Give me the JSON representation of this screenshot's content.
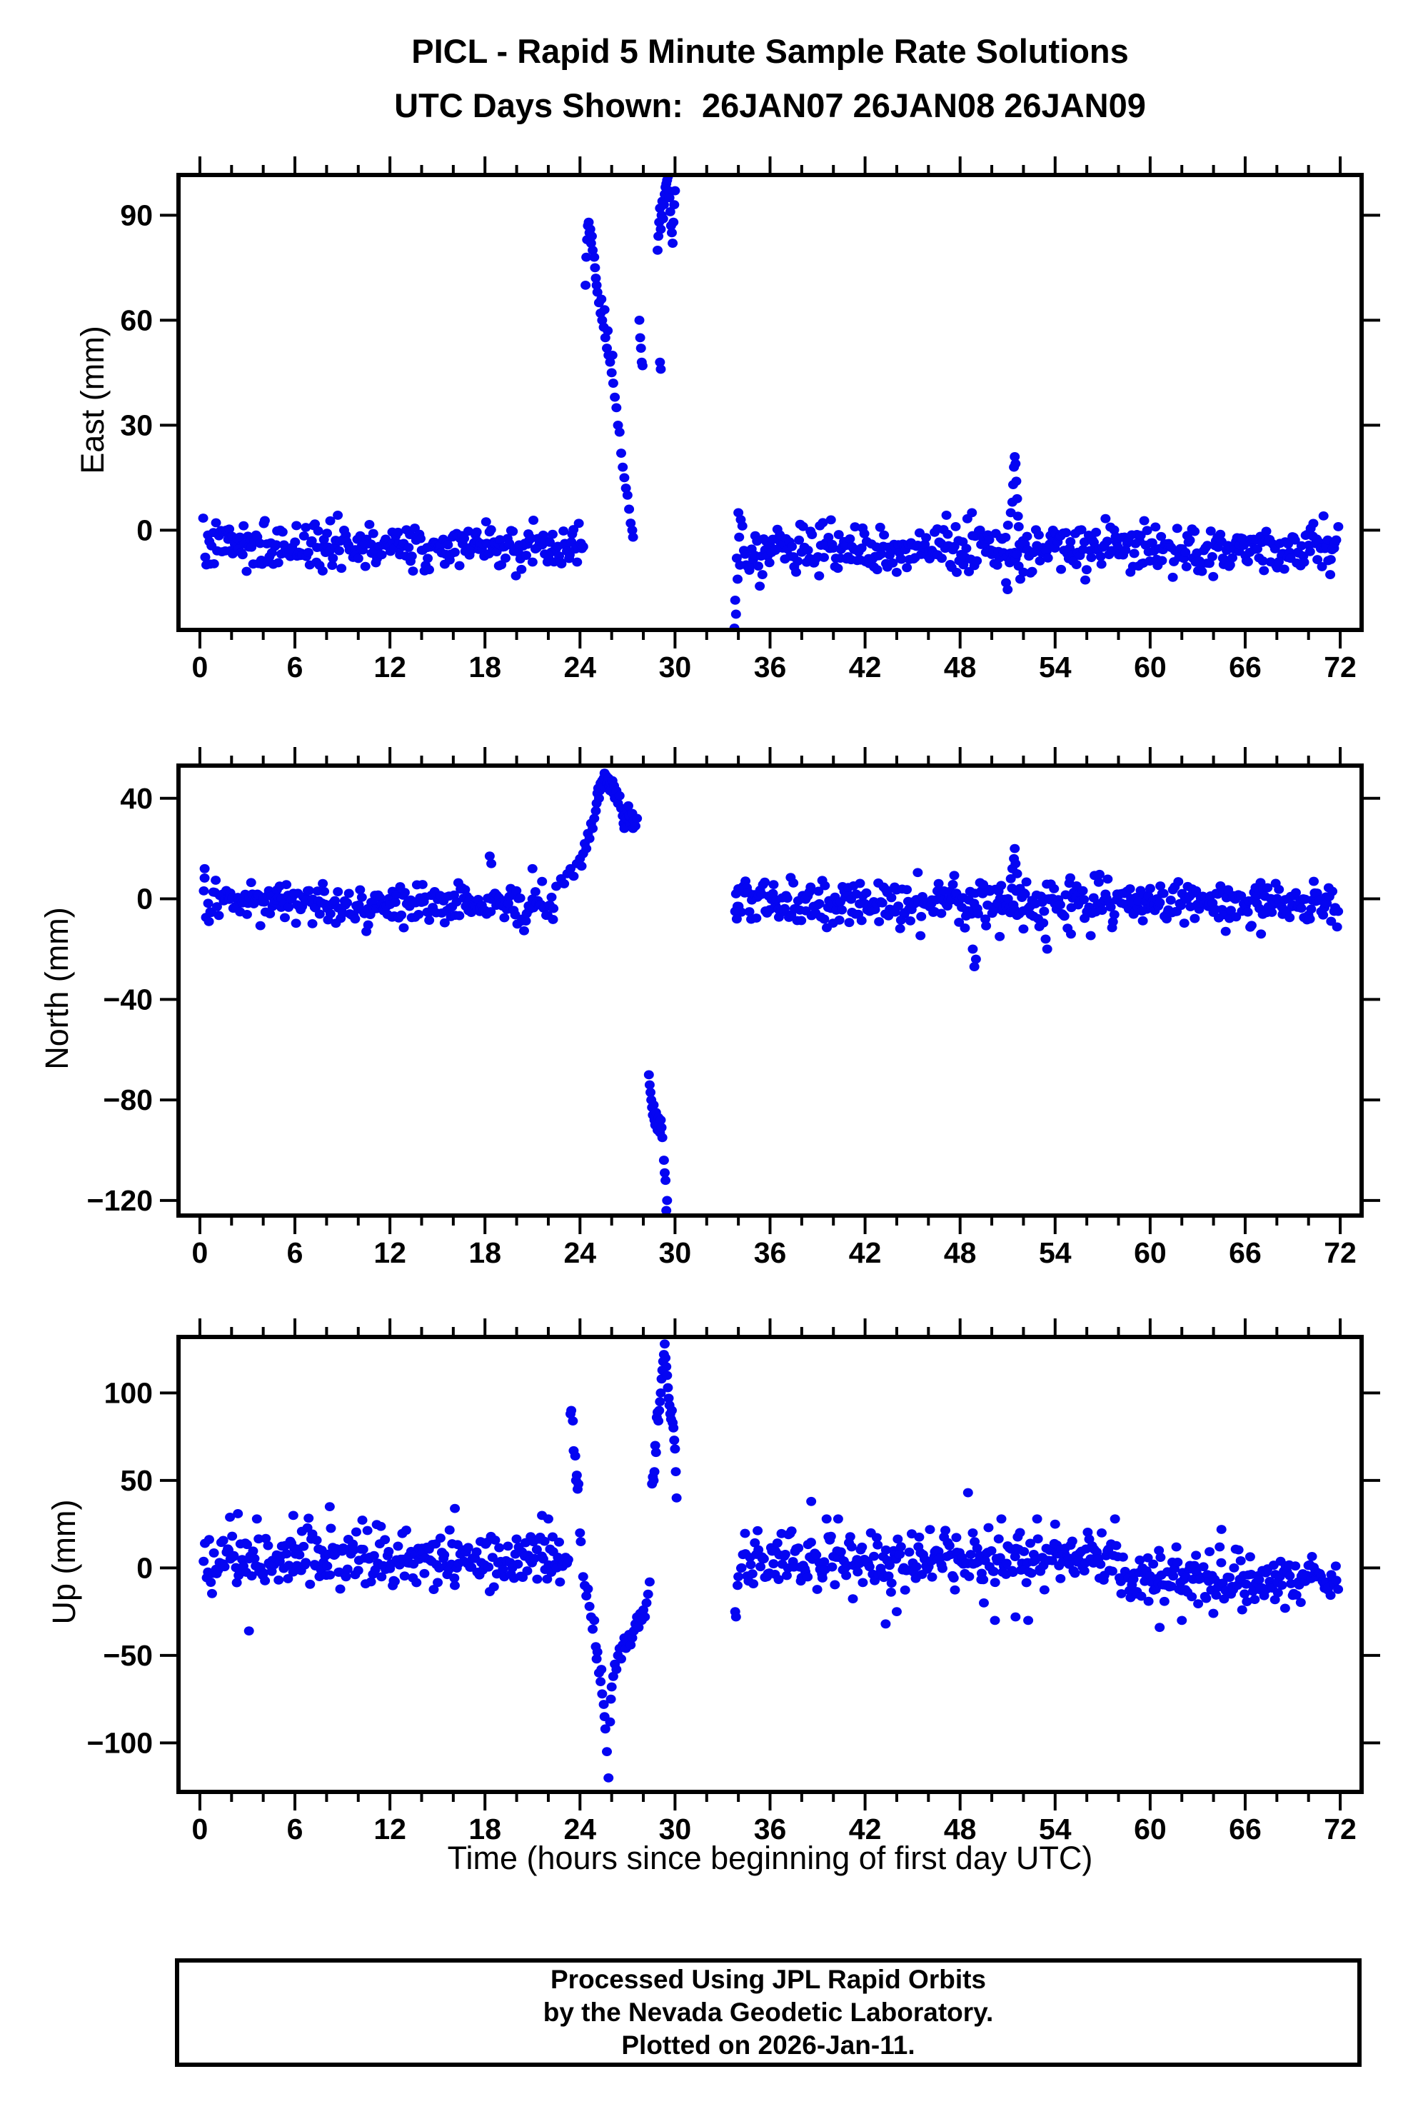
{
  "title": "PICL - Rapid 5 Minute Sample Rate Solutions",
  "subtitle": "UTC Days Shown:  26JAN07 26JAN08 26JAN09",
  "x_axis_title": "Time (hours since beginning of first day UTC)",
  "footer": {
    "line1": "Processed Using JPL Rapid Orbits",
    "line2": "by the Nevada Geodetic Laboratory.",
    "line3": "Plotted on 2026-Jan-11."
  },
  "colors": {
    "point": "#0505f2",
    "frame": "#000000",
    "text": "#000000",
    "background": "#ffffff"
  },
  "chart_data": [
    {
      "type": "scatter",
      "name": "east",
      "ylabel": "East (mm)",
      "xlim": [
        -1.35,
        73.35
      ],
      "ylim": [
        -28.5,
        101.5
      ],
      "yticks": [
        0,
        30,
        60,
        90
      ],
      "xtick_major": 6,
      "xtick_minor": 2,
      "xtick_start": 0,
      "xtick_end": 72,
      "seed": 7,
      "noise_segments": [
        {
          "h0": 0.2,
          "h1": 24.25,
          "n": 285,
          "mean": -4.5,
          "sd": 3.4,
          "min": -15,
          "max": 5
        },
        {
          "h0": 34.2,
          "h1": 71.9,
          "n": 445,
          "mean": -5.5,
          "sd": 3.4,
          "min": -16,
          "max": 5
        }
      ],
      "points": [
        [
          24.35,
          70
        ],
        [
          24.4,
          78
        ],
        [
          24.45,
          83
        ],
        [
          24.5,
          87
        ],
        [
          24.55,
          88
        ],
        [
          24.6,
          85
        ],
        [
          24.65,
          86
        ],
        [
          24.7,
          82
        ],
        [
          24.75,
          84
        ],
        [
          24.8,
          80
        ],
        [
          24.9,
          78
        ],
        [
          24.95,
          75
        ],
        [
          25.0,
          72
        ],
        [
          25.05,
          70
        ],
        [
          25.1,
          68
        ],
        [
          25.2,
          65
        ],
        [
          25.3,
          62
        ],
        [
          25.35,
          66
        ],
        [
          25.4,
          60
        ],
        [
          25.5,
          58
        ],
        [
          25.55,
          63
        ],
        [
          25.6,
          55
        ],
        [
          25.7,
          52
        ],
        [
          25.75,
          57
        ],
        [
          25.8,
          50
        ],
        [
          25.9,
          48
        ],
        [
          26.0,
          45
        ],
        [
          26.05,
          50
        ],
        [
          26.1,
          42
        ],
        [
          26.2,
          38
        ],
        [
          26.3,
          35
        ],
        [
          26.4,
          30
        ],
        [
          26.5,
          28
        ],
        [
          26.6,
          22
        ],
        [
          26.7,
          18
        ],
        [
          26.8,
          15
        ],
        [
          26.9,
          12
        ],
        [
          27.0,
          10
        ],
        [
          27.1,
          6
        ],
        [
          27.2,
          2
        ],
        [
          27.3,
          0
        ],
        [
          27.35,
          -2
        ],
        [
          27.75,
          60
        ],
        [
          27.8,
          55
        ],
        [
          27.85,
          52
        ],
        [
          27.9,
          48
        ],
        [
          27.95,
          47
        ],
        [
          28.9,
          80
        ],
        [
          28.95,
          84
        ],
        [
          29.0,
          88
        ],
        [
          29.05,
          92
        ],
        [
          29.1,
          86
        ],
        [
          29.15,
          90
        ],
        [
          29.2,
          94
        ],
        [
          29.25,
          89
        ],
        [
          29.3,
          93
        ],
        [
          29.35,
          96
        ],
        [
          29.4,
          98
        ],
        [
          29.45,
          99
        ],
        [
          29.5,
          100
        ],
        [
          29.55,
          101
        ],
        [
          29.6,
          97
        ],
        [
          29.65,
          95
        ],
        [
          29.7,
          91
        ],
        [
          29.75,
          87
        ],
        [
          29.8,
          85
        ],
        [
          29.85,
          82
        ],
        [
          29.9,
          88
        ],
        [
          29.95,
          93
        ],
        [
          30.0,
          97
        ],
        [
          29.05,
          48
        ],
        [
          29.1,
          46
        ],
        [
          33.75,
          -28
        ],
        [
          33.8,
          -20
        ],
        [
          33.85,
          -24
        ],
        [
          33.9,
          -8
        ],
        [
          33.95,
          -14
        ],
        [
          34.0,
          5
        ],
        [
          34.05,
          -2
        ],
        [
          34.1,
          -10
        ],
        [
          34.15,
          3
        ],
        [
          50.9,
          -15
        ],
        [
          51.0,
          -17
        ],
        [
          51.2,
          5
        ],
        [
          51.3,
          8
        ],
        [
          51.35,
          13
        ],
        [
          51.4,
          18
        ],
        [
          51.45,
          21
        ],
        [
          51.5,
          19
        ],
        [
          51.55,
          14
        ],
        [
          51.6,
          9
        ],
        [
          51.65,
          4
        ],
        [
          51.7,
          1
        ],
        [
          51.8,
          -14
        ],
        [
          52.0,
          -12
        ]
      ]
    },
    {
      "type": "scatter",
      "name": "north",
      "ylabel": "North (mm)",
      "xlim": [
        -1.35,
        73.35
      ],
      "ylim": [
        -126,
        53
      ],
      "yticks": [
        40,
        0,
        -40,
        -80,
        -120
      ],
      "xtick_major": 6,
      "xtick_minor": 2,
      "xtick_start": 0,
      "xtick_end": 72,
      "seed": 13,
      "noise_segments": [
        {
          "h0": 0.2,
          "h1": 22.4,
          "n": 260,
          "mean": -2,
          "sd": 4.0,
          "min": -13,
          "max": 11
        },
        {
          "h0": 33.9,
          "h1": 71.9,
          "n": 445,
          "mean": -1.5,
          "sd": 4.3,
          "min": -15,
          "max": 12
        }
      ],
      "points": [
        [
          0.3,
          12
        ],
        [
          18.3,
          17
        ],
        [
          18.4,
          14
        ],
        [
          21.0,
          12
        ],
        [
          22.5,
          5
        ],
        [
          22.8,
          8
        ],
        [
          23.0,
          6
        ],
        [
          23.2,
          10
        ],
        [
          23.4,
          12
        ],
        [
          23.6,
          9
        ],
        [
          23.8,
          14
        ],
        [
          24.0,
          16
        ],
        [
          24.1,
          13
        ],
        [
          24.2,
          18
        ],
        [
          24.3,
          22
        ],
        [
          24.4,
          20
        ],
        [
          24.5,
          26
        ],
        [
          24.6,
          24
        ],
        [
          24.7,
          30
        ],
        [
          24.8,
          28
        ],
        [
          24.9,
          32
        ],
        [
          25.0,
          35
        ],
        [
          25.05,
          38
        ],
        [
          25.1,
          42
        ],
        [
          25.15,
          44
        ],
        [
          25.2,
          40
        ],
        [
          25.25,
          43
        ],
        [
          25.3,
          46
        ],
        [
          25.35,
          44
        ],
        [
          25.4,
          47
        ],
        [
          25.45,
          45
        ],
        [
          25.5,
          48
        ],
        [
          25.55,
          50
        ],
        [
          25.6,
          47
        ],
        [
          25.65,
          49
        ],
        [
          25.7,
          46
        ],
        [
          25.75,
          44
        ],
        [
          25.8,
          48
        ],
        [
          25.85,
          45
        ],
        [
          25.9,
          43
        ],
        [
          25.95,
          46
        ],
        [
          26.0,
          44
        ],
        [
          26.05,
          47
        ],
        [
          26.1,
          42
        ],
        [
          26.15,
          45
        ],
        [
          26.2,
          40
        ],
        [
          26.3,
          43
        ],
        [
          26.4,
          38
        ],
        [
          26.5,
          41
        ],
        [
          26.6,
          36
        ],
        [
          26.7,
          33
        ],
        [
          26.75,
          30
        ],
        [
          26.8,
          28
        ],
        [
          26.9,
          32
        ],
        [
          27.0,
          35
        ],
        [
          27.05,
          37
        ],
        [
          27.1,
          33
        ],
        [
          27.2,
          30
        ],
        [
          27.3,
          34
        ],
        [
          27.35,
          28
        ],
        [
          27.4,
          31
        ],
        [
          27.5,
          29
        ],
        [
          27.6,
          32
        ],
        [
          28.35,
          -70
        ],
        [
          28.4,
          -74
        ],
        [
          28.45,
          -77
        ],
        [
          28.5,
          -80
        ],
        [
          28.55,
          -83
        ],
        [
          28.6,
          -86
        ],
        [
          28.65,
          -82
        ],
        [
          28.7,
          -88
        ],
        [
          28.75,
          -90
        ],
        [
          28.8,
          -85
        ],
        [
          28.85,
          -89
        ],
        [
          28.9,
          -92
        ],
        [
          28.95,
          -87
        ],
        [
          29.0,
          -90
        ],
        [
          29.05,
          -93
        ],
        [
          29.1,
          -88
        ],
        [
          29.15,
          -91
        ],
        [
          29.2,
          -95
        ],
        [
          29.3,
          -104
        ],
        [
          29.35,
          -109
        ],
        [
          29.4,
          -112
        ],
        [
          29.45,
          -124
        ],
        [
          29.5,
          -120
        ],
        [
          33.8,
          -5
        ],
        [
          33.85,
          2
        ],
        [
          33.9,
          -8
        ],
        [
          34.0,
          4
        ],
        [
          48.8,
          -20
        ],
        [
          48.9,
          -27
        ],
        [
          49.0,
          -24
        ],
        [
          50.5,
          -15
        ],
        [
          51.2,
          8
        ],
        [
          51.3,
          12
        ],
        [
          51.4,
          16
        ],
        [
          51.45,
          20
        ],
        [
          51.5,
          14
        ],
        [
          51.6,
          10
        ],
        [
          52.0,
          -12
        ],
        [
          53.4,
          -16
        ],
        [
          53.5,
          -20
        ],
        [
          55.0,
          -14
        ],
        [
          67.0,
          -14
        ]
      ]
    },
    {
      "type": "scatter",
      "name": "up",
      "ylabel": "Up (mm)",
      "xlim": [
        -1.35,
        73.35
      ],
      "ylim": [
        -128,
        132
      ],
      "yticks": [
        100,
        50,
        0,
        -50,
        -100
      ],
      "xtick_major": 6,
      "xtick_minor": 2,
      "xtick_start": 0,
      "xtick_end": 72,
      "seed": 21,
      "noise_segments": [
        {
          "h0": 0.2,
          "h1": 23.3,
          "n": 275,
          "mean": 6,
          "sd": 8.5,
          "min": -20,
          "max": 32
        },
        {
          "h0": 34.1,
          "h1": 58.0,
          "n": 290,
          "mean": 5,
          "sd": 8.0,
          "min": -18,
          "max": 28
        },
        {
          "h0": 58.0,
          "h1": 71.9,
          "n": 170,
          "mean": -7,
          "sd": 7.0,
          "min": -26,
          "max": 12
        }
      ],
      "points": [
        [
          1.9,
          29
        ],
        [
          2.4,
          31
        ],
        [
          3.1,
          -36
        ],
        [
          3.6,
          28
        ],
        [
          5.9,
          30
        ],
        [
          8.2,
          35
        ],
        [
          16.1,
          34
        ],
        [
          21.6,
          30
        ],
        [
          22.0,
          28
        ],
        [
          23.4,
          88
        ],
        [
          23.45,
          90
        ],
        [
          23.55,
          84
        ],
        [
          23.6,
          67
        ],
        [
          23.7,
          64
        ],
        [
          23.75,
          50
        ],
        [
          23.8,
          53
        ],
        [
          23.85,
          45
        ],
        [
          23.9,
          48
        ],
        [
          24.0,
          20
        ],
        [
          24.05,
          15
        ],
        [
          24.2,
          -5
        ],
        [
          24.3,
          -10
        ],
        [
          24.4,
          -16
        ],
        [
          24.5,
          -12
        ],
        [
          24.6,
          -22
        ],
        [
          24.7,
          -28
        ],
        [
          24.8,
          -35
        ],
        [
          24.9,
          -30
        ],
        [
          25.0,
          -45
        ],
        [
          25.05,
          -52
        ],
        [
          25.1,
          -48
        ],
        [
          25.2,
          -60
        ],
        [
          25.3,
          -65
        ],
        [
          25.35,
          -58
        ],
        [
          25.4,
          -72
        ],
        [
          25.5,
          -78
        ],
        [
          25.55,
          -85
        ],
        [
          25.6,
          -92
        ],
        [
          25.7,
          -105
        ],
        [
          25.8,
          -120
        ],
        [
          25.9,
          -88
        ],
        [
          25.95,
          -75
        ],
        [
          26.0,
          -68
        ],
        [
          26.1,
          -62
        ],
        [
          26.2,
          -55
        ],
        [
          26.3,
          -58
        ],
        [
          26.4,
          -50
        ],
        [
          26.5,
          -46
        ],
        [
          26.6,
          -52
        ],
        [
          26.7,
          -44
        ],
        [
          26.8,
          -40
        ],
        [
          26.9,
          -46
        ],
        [
          27.0,
          -42
        ],
        [
          27.1,
          -38
        ],
        [
          27.2,
          -44
        ],
        [
          27.3,
          -40
        ],
        [
          27.4,
          -36
        ],
        [
          27.5,
          -32
        ],
        [
          27.6,
          -28
        ],
        [
          27.7,
          -34
        ],
        [
          27.8,
          -26
        ],
        [
          27.9,
          -30
        ],
        [
          28.0,
          -24
        ],
        [
          28.1,
          -28
        ],
        [
          28.2,
          -20
        ],
        [
          28.3,
          -15
        ],
        [
          28.4,
          -8
        ],
        [
          28.55,
          48
        ],
        [
          28.6,
          52
        ],
        [
          28.65,
          50
        ],
        [
          28.7,
          55
        ],
        [
          28.75,
          70
        ],
        [
          28.8,
          66
        ],
        [
          28.85,
          86
        ],
        [
          28.9,
          89
        ],
        [
          28.95,
          84
        ],
        [
          29.0,
          90
        ],
        [
          29.05,
          95
        ],
        [
          29.1,
          100
        ],
        [
          29.15,
          108
        ],
        [
          29.2,
          113
        ],
        [
          29.25,
          118
        ],
        [
          29.3,
          122
        ],
        [
          29.35,
          128
        ],
        [
          29.4,
          120
        ],
        [
          29.45,
          115
        ],
        [
          29.5,
          110
        ],
        [
          29.55,
          103
        ],
        [
          29.6,
          97
        ],
        [
          29.65,
          93
        ],
        [
          29.7,
          88
        ],
        [
          29.75,
          85
        ],
        [
          29.8,
          90
        ],
        [
          29.85,
          83
        ],
        [
          29.9,
          80
        ],
        [
          29.95,
          73
        ],
        [
          30.0,
          68
        ],
        [
          30.05,
          55
        ],
        [
          30.1,
          40
        ],
        [
          33.8,
          -25
        ],
        [
          33.85,
          -28
        ],
        [
          33.95,
          -10
        ],
        [
          34.0,
          -5
        ],
        [
          38.6,
          38
        ],
        [
          40.3,
          28
        ],
        [
          43.3,
          -32
        ],
        [
          44.0,
          -25
        ],
        [
          48.5,
          43
        ],
        [
          48.8,
          20
        ],
        [
          49.5,
          -20
        ],
        [
          50.2,
          -30
        ],
        [
          51.5,
          -28
        ],
        [
          52.3,
          -30
        ],
        [
          54.0,
          25
        ],
        [
          60.6,
          -34
        ],
        [
          62.0,
          -30
        ],
        [
          64.5,
          22
        ]
      ]
    }
  ]
}
